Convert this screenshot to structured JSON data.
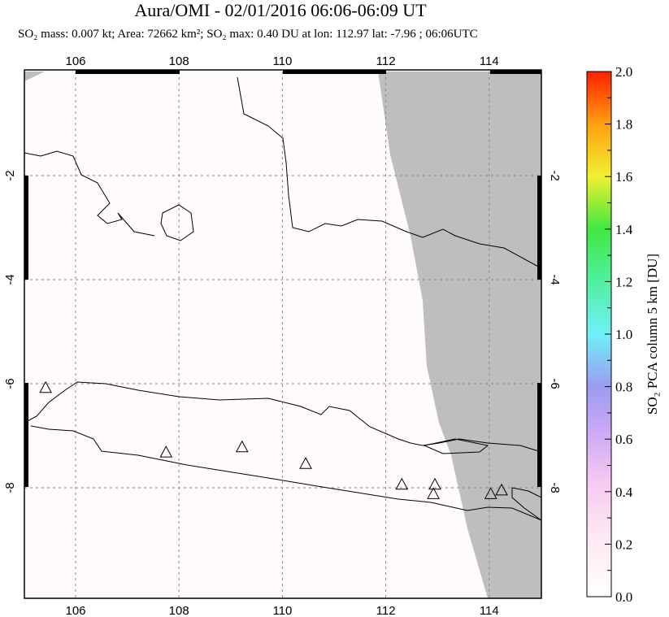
{
  "title": "Aura/OMI - 02/01/2016 06:06-06:09 UT",
  "subtitle": {
    "mass": "SO₂ mass: 0.007 kt; Area: 72662 km²; SO₂ max: 0.40 DU at lon: 112.97 lat: -7.96 ; 06:06UTC"
  },
  "chart_data": {
    "type": "map",
    "lon_ticks": [
      "106",
      "108",
      "110",
      "112",
      "114"
    ],
    "lat_ticks": [
      "-2",
      "-4",
      "-6",
      "-8"
    ],
    "lon_range": [
      105.0,
      115.0
    ],
    "lat_range": [
      0.0,
      -10.2
    ],
    "grid": true,
    "no_data_color": "#bebebe",
    "volcanoes": [
      {
        "lon": 105.42,
        "lat": -6.09
      },
      {
        "lon": 107.75,
        "lat": -7.33
      },
      {
        "lon": 109.22,
        "lat": -7.23
      },
      {
        "lon": 110.45,
        "lat": -7.55
      },
      {
        "lon": 112.31,
        "lat": -7.95
      },
      {
        "lon": 112.95,
        "lat": -7.95
      },
      {
        "lon": 112.92,
        "lat": -8.13
      },
      {
        "lon": 114.03,
        "lat": -8.13
      },
      {
        "lon": 114.24,
        "lat": -8.06
      }
    ],
    "colorbar": {
      "label": "SO₂ PCA column 5 km [DU]",
      "range": [
        0.0,
        2.0
      ],
      "ticks": [
        "0.0",
        "0.2",
        "0.4",
        "0.6",
        "0.8",
        "1.0",
        "1.2",
        "1.4",
        "1.6",
        "1.8",
        "2.0"
      ],
      "colors": [
        "#ffffff",
        "#fcd8f0",
        "#d8b0f4",
        "#9a9af0",
        "#70e8f8",
        "#50f0a0",
        "#40e840",
        "#f0f030",
        "#ffa010",
        "#ff2000"
      ]
    }
  }
}
